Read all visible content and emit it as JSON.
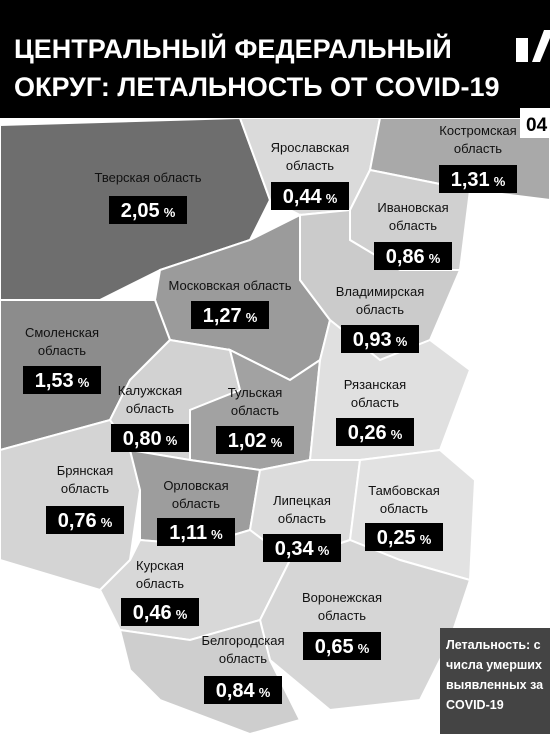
{
  "header": {
    "title_lines": [
      "ЦЕНТРАЛЬНЫЙ ФЕДЕРАЛЬНЫЙ",
      "ОКРУГ: ЛЕТАЛЬНОСТЬ ОТ COVID-19"
    ],
    "corner_text": "04"
  },
  "unit": "%",
  "regions": [
    {
      "name_lines": [
        "Тверская область"
      ],
      "value": "2,05"
    },
    {
      "name_lines": [
        "Ярославская",
        "область"
      ],
      "value": "0,44"
    },
    {
      "name_lines": [
        "Костромская",
        "область"
      ],
      "value": "1,31"
    },
    {
      "name_lines": [
        "Ивановская",
        "область"
      ],
      "value": "0,86"
    },
    {
      "name_lines": [
        "Московская область"
      ],
      "value": "1,27"
    },
    {
      "name_lines": [
        "Владимирская",
        "область"
      ],
      "value": "0,93"
    },
    {
      "name_lines": [
        "Смоленская",
        "область"
      ],
      "value": "1,53"
    },
    {
      "name_lines": [
        "Калужская",
        "область"
      ],
      "value": "0,80"
    },
    {
      "name_lines": [
        "Тульская",
        "область"
      ],
      "value": "1,02"
    },
    {
      "name_lines": [
        "Рязанская",
        "область"
      ],
      "value": "0,26"
    },
    {
      "name_lines": [
        "Брянская",
        "область"
      ],
      "value": "0,76"
    },
    {
      "name_lines": [
        "Орловская",
        "область"
      ],
      "value": "1,11"
    },
    {
      "name_lines": [
        "Липецкая",
        "область"
      ],
      "value": "0,34"
    },
    {
      "name_lines": [
        "Тамбовская",
        "область"
      ],
      "value": "0,25"
    },
    {
      "name_lines": [
        "Курская",
        "область"
      ],
      "value": "0,46"
    },
    {
      "name_lines": [
        "Воронежская",
        "область"
      ],
      "value": "0,65"
    },
    {
      "name_lines": [
        "Белгородская",
        "область"
      ],
      "value": "0,84"
    }
  ],
  "legend_lines": [
    "Летальность: с",
    "числа умерших",
    "выявленных за",
    "COVID-19"
  ]
}
